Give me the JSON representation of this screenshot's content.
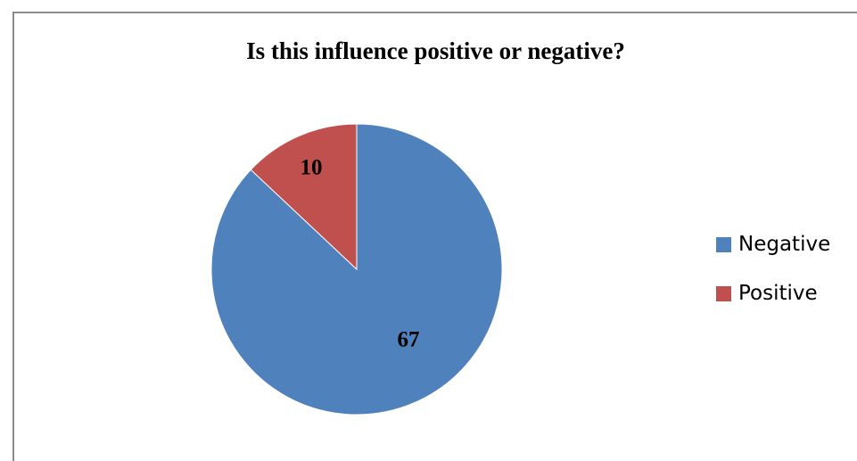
{
  "chart_data": {
    "type": "pie",
    "title": "Is this influence positive or negative?",
    "slices": [
      {
        "name": "Negative",
        "value": 67,
        "label": "67",
        "color": "#4F81BD"
      },
      {
        "name": "Positive",
        "value": 10,
        "label": "10",
        "color": "#C0504D"
      }
    ],
    "legend_position": "right"
  }
}
